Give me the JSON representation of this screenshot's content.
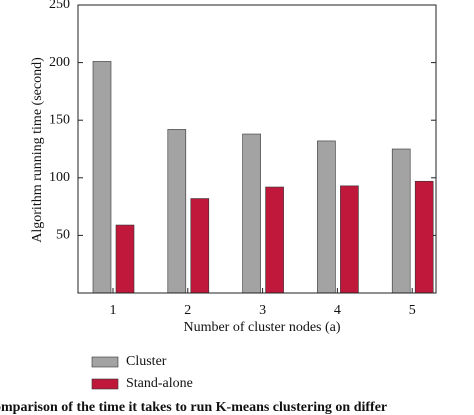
{
  "chart_data": {
    "type": "bar",
    "x_label": "Number of cluster nodes (a)",
    "y_label": "Algorithm running time (second)",
    "categories": [
      "1",
      "2",
      "3",
      "4",
      "5"
    ],
    "series": [
      {
        "name": "Cluster",
        "color": "#a3a3a3",
        "values": [
          201,
          142,
          138,
          132,
          125
        ]
      },
      {
        "name": "Stand-alone",
        "color": "#c0183a",
        "values": [
          59,
          82,
          92,
          93,
          97
        ]
      }
    ],
    "ylim": [
      0,
      250
    ],
    "yticks": [
      50,
      100,
      150,
      200,
      250
    ],
    "caption": "omparison of the time it takes to run K-means clustering on differ"
  }
}
